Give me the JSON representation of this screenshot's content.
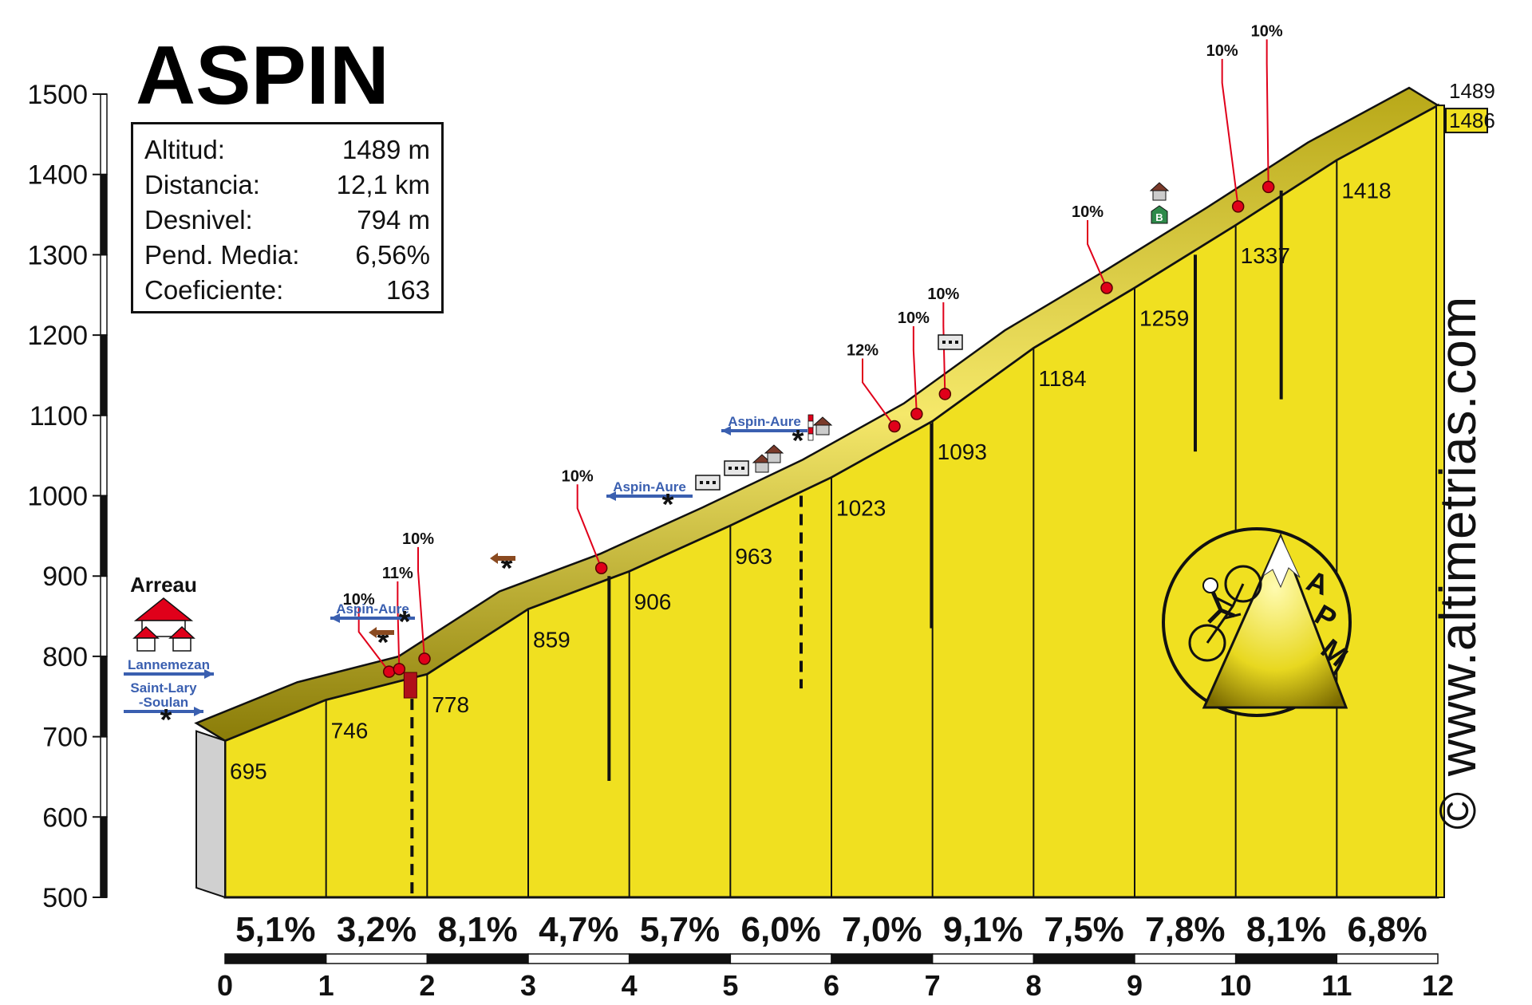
{
  "title": "ASPIN",
  "info": {
    "rows": [
      {
        "label": "Altitud:",
        "value": "1489 m"
      },
      {
        "label": "Distancia:",
        "value": "12,1 km"
      },
      {
        "label": "Desnivel:",
        "value": "794 m"
      },
      {
        "label": "Pend. Media:",
        "value": "6,56%"
      },
      {
        "label": "Coeficiente:",
        "value": "163"
      }
    ]
  },
  "credit": "© www.altimetrias.com",
  "logo_text": [
    "A",
    "P",
    "M"
  ],
  "chart_data": {
    "type": "area",
    "x": [
      0,
      1,
      2,
      3,
      4,
      5,
      6,
      7,
      8,
      9,
      10,
      11,
      12
    ],
    "y": [
      695,
      746,
      778,
      859,
      906,
      963,
      1023,
      1093,
      1184,
      1259,
      1337,
      1418,
      1486
    ],
    "km_labels": [
      "0",
      "1",
      "2",
      "3",
      "4",
      "5",
      "6",
      "7",
      "8",
      "9",
      "10",
      "11",
      "12"
    ],
    "altitude_labels": [
      "695",
      "746",
      "778",
      "859",
      "906",
      "963",
      "1023",
      "1093",
      "1184",
      "1259",
      "1337",
      "1418",
      "1486"
    ],
    "summit": "1489",
    "gradients": [
      "5,1%",
      "3,2%",
      "8,1%",
      "4,7%",
      "5,7%",
      "6,0%",
      "7,0%",
      "9,1%",
      "7,5%",
      "7,8%",
      "8,1%",
      "6,8%"
    ],
    "xlim": [
      0,
      12
    ],
    "ylim": [
      500,
      1500
    ],
    "yticks": [
      "500",
      "600",
      "700",
      "800",
      "900",
      "1000",
      "1100",
      "1200",
      "1300",
      "1400",
      "1500"
    ],
    "steep_points": [
      {
        "km": 1.75,
        "label": "10%"
      },
      {
        "km": 1.85,
        "label": "11%"
      },
      {
        "km": 2.1,
        "label": "10%"
      },
      {
        "km": 3.85,
        "label": "10%"
      },
      {
        "km": 6.75,
        "label": "12%"
      },
      {
        "km": 6.97,
        "label": "10%"
      },
      {
        "km": 7.25,
        "label": "10%"
      },
      {
        "km": 8.85,
        "label": "10%"
      },
      {
        "km": 10.15,
        "label": "10%"
      },
      {
        "km": 10.45,
        "label": "10%"
      }
    ],
    "places": {
      "start": "Arreau",
      "arrows": [
        "Lannemezan",
        "Saint-Lary\n-Soulan",
        "Aspin-Aure",
        "Aspin-Aure",
        "Aspin-Aure"
      ]
    },
    "colors": {
      "fill": "#f0e020",
      "dark": "#a89a10",
      "red": "#e0001a",
      "arrow": "#3a5fb0"
    }
  }
}
